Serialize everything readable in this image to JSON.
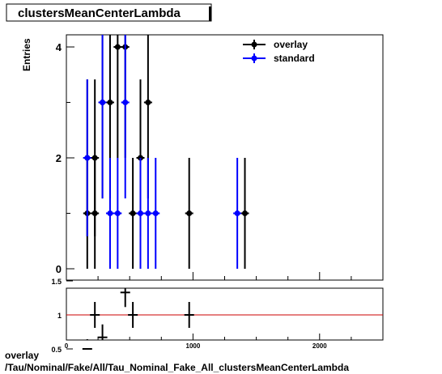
{
  "chart_data": [
    {
      "type": "scatter",
      "title": "clustersMeanCenterLambda",
      "ylabel": "Entries",
      "xlim": [
        0,
        2500
      ],
      "ylim": [
        0,
        4.2
      ],
      "yticks": [
        0,
        2,
        4
      ],
      "xticks": [
        0,
        1000,
        2000
      ],
      "legend_position": "top-right",
      "series": [
        {
          "name": "overlay",
          "color": "#000000",
          "points": [
            {
              "x": 165,
              "y": 1
            },
            {
              "x": 225,
              "y": 2
            },
            {
              "x": 165,
              "y": 2
            },
            {
              "x": 225,
              "y": 1
            },
            {
              "x": 285,
              "y": 3
            },
            {
              "x": 345,
              "y": 3
            },
            {
              "x": 405,
              "y": 4
            },
            {
              "x": 465,
              "y": 4
            },
            {
              "x": 525,
              "y": 1
            },
            {
              "x": 585,
              "y": 2
            },
            {
              "x": 645,
              "y": 3
            },
            {
              "x": 970,
              "y": 1
            },
            {
              "x": 1410,
              "y": 1
            }
          ]
        },
        {
          "name": "standard",
          "color": "#0000ff",
          "points": [
            {
              "x": 165,
              "y": 2
            },
            {
              "x": 285,
              "y": 3
            },
            {
              "x": 345,
              "y": 1
            },
            {
              "x": 405,
              "y": 1
            },
            {
              "x": 465,
              "y": 3
            },
            {
              "x": 585,
              "y": 1
            },
            {
              "x": 645,
              "y": 1
            },
            {
              "x": 705,
              "y": 1
            },
            {
              "x": 1350,
              "y": 1
            }
          ]
        }
      ]
    },
    {
      "type": "scatter",
      "title": "",
      "xlim": [
        0,
        2500
      ],
      "ylim": [
        0.3,
        1.7
      ],
      "yticks": [
        0.5,
        1,
        1.5
      ],
      "ytick_labels": [
        "0.5",
        "1",
        "1.5"
      ],
      "xticks": [
        0,
        1000,
        2000
      ],
      "reference_line": {
        "y": 1,
        "color": "#cc0000"
      },
      "series": [
        {
          "name": "ratio",
          "color": "#000000",
          "points": [
            {
              "x": 165,
              "y": 0.5
            },
            {
              "x": 225,
              "y": 1.0
            },
            {
              "x": 285,
              "y": 0.67
            },
            {
              "x": 465,
              "y": 1.33
            },
            {
              "x": 525,
              "y": 1.0
            },
            {
              "x": 970,
              "y": 1.0
            }
          ]
        }
      ]
    }
  ],
  "footer": {
    "line1": "overlay",
    "line2": "/Tau/Nominal/Fake/All/Tau_Nominal_Fake_All_clustersMeanCenterLambda"
  }
}
